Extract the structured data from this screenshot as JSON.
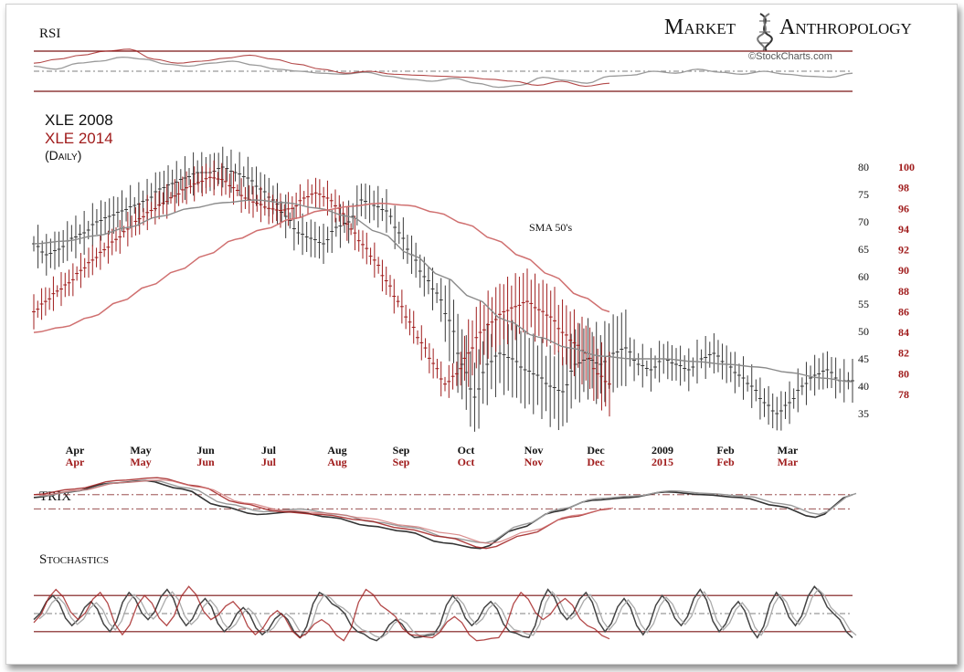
{
  "brand": {
    "name_part1": "Market",
    "name_part2": "Anthropology",
    "credit": "©StockCharts.com",
    "logo_icon": "dna-helix-icon"
  },
  "colors": {
    "series_2008": "#3a3a3a",
    "series_2014": "#a01c1c",
    "sma_2008": "#8a8a8a",
    "sma_2014": "#d07070",
    "band": "#7a1515",
    "bg": "#ffffff"
  },
  "chart_data": [
    {
      "type": "line",
      "panel": "rsi",
      "title": "RSI",
      "series": [
        {
          "name": "XLE 2008",
          "values": [
            55,
            52,
            58,
            60,
            64,
            62,
            57,
            55,
            58,
            60,
            56,
            52,
            50,
            48,
            47,
            49,
            45,
            42,
            40,
            43,
            38,
            34,
            36,
            44,
            41,
            38,
            45,
            46,
            50,
            48,
            52,
            49,
            47,
            50,
            47,
            45,
            44,
            48
          ]
        },
        {
          "name": "XLE 2014",
          "values": [
            58,
            62,
            66,
            70,
            72,
            62,
            58,
            60,
            63,
            66,
            62,
            57,
            52,
            48,
            50,
            47,
            46,
            45,
            44,
            42,
            40,
            36,
            40,
            35,
            38
          ]
        }
      ]
    },
    {
      "type": "line",
      "panel": "price",
      "title": "XLE 2008",
      "subtitle": "XLE 2014",
      "note": "(Daily)",
      "annotation": "SMA 50's",
      "yaxis_2008": {
        "ticks": [
          35,
          40,
          45,
          50,
          55,
          60,
          65,
          70,
          75,
          80
        ],
        "lim": [
          33,
          82
        ]
      },
      "yaxis_2014": {
        "ticks": [
          78,
          80,
          82,
          84,
          86,
          88,
          90,
          92,
          94,
          96,
          98,
          100
        ]
      },
      "x_months_2008": [
        "Apr",
        "May",
        "Jun",
        "Jul",
        "Aug",
        "Sep",
        "Oct",
        "Nov",
        "Dec",
        "2009",
        "Feb",
        "Mar"
      ],
      "x_months_2014": [
        "Apr",
        "May",
        "Jun",
        "Jul",
        "Aug",
        "Sep",
        "Oct",
        "Nov",
        "Dec",
        "2015",
        "Feb",
        "Mar"
      ],
      "series": [
        {
          "name": "XLE 2008",
          "values": [
            66,
            64,
            65,
            67,
            68,
            70,
            71,
            72,
            73,
            74,
            76,
            77,
            78,
            79,
            79,
            80,
            79,
            78,
            76,
            74,
            71,
            68,
            67,
            66,
            69,
            70,
            74,
            73,
            72,
            68,
            64,
            60,
            57,
            52,
            44,
            38,
            44,
            46,
            45,
            43,
            42,
            40,
            39,
            44,
            45,
            44,
            46,
            47,
            44,
            43,
            45,
            44,
            43,
            45,
            46,
            44,
            42,
            40,
            37,
            35,
            37,
            40,
            42,
            43,
            41,
            41
          ]
        },
        {
          "name": "XLE 2008 SMA 50",
          "values": [
            66,
            66.5,
            67.5,
            69,
            71,
            72.5,
            73.5,
            74,
            73.5,
            72.5,
            71,
            68,
            64,
            60,
            56,
            52,
            49,
            47,
            45.5,
            45,
            45,
            44.5,
            44,
            43.5,
            42.5,
            41.5,
            40.8
          ]
        },
        {
          "name": "XLE 2014",
          "values": [
            86,
            87,
            88,
            88.8,
            90,
            91,
            92,
            93,
            94,
            95,
            95.8,
            96.5,
            97.2,
            98,
            98.5,
            99,
            98.8,
            98,
            97,
            96.5,
            96,
            95.8,
            96,
            97,
            97.5,
            97,
            96,
            94,
            92.5,
            91,
            89,
            87,
            85,
            83,
            81,
            79,
            80,
            82,
            84,
            85,
            86,
            86.5,
            87,
            86.2,
            85.5,
            84,
            83,
            82,
            80,
            79
          ]
        },
        {
          "name": "XLE 2014 SMA 50",
          "values": [
            84,
            84.5,
            85.5,
            87,
            88.5,
            90,
            91.5,
            93,
            94,
            95,
            95.8,
            96.2,
            96.5,
            96.3,
            95.6,
            94.5,
            93,
            91.3,
            89.5,
            87.5,
            86
          ]
        }
      ]
    },
    {
      "type": "line",
      "panel": "trix",
      "title": "TRIX",
      "series": [
        {
          "name": "XLE 2008",
          "values": [
            0.05,
            0.15,
            0.3,
            0.35,
            0.2,
            -0.1,
            -0.25,
            -0.2,
            -0.3,
            -0.45,
            -0.55,
            -0.75,
            -0.85,
            -0.5,
            -0.2,
            0.0,
            0.05,
            0.15,
            0.1,
            0.05,
            -0.1,
            -0.3,
            0.1
          ]
        },
        {
          "name": "XLE 2014",
          "values": [
            0.1,
            0.2,
            0.35,
            0.4,
            0.25,
            -0.05,
            -0.2,
            -0.25,
            -0.35,
            -0.5,
            -0.65,
            -0.85,
            -0.6,
            -0.3,
            -0.15
          ]
        }
      ]
    },
    {
      "type": "line",
      "panel": "stochastics",
      "title": "Stochastics",
      "series": [
        {
          "name": "XLE 2008",
          "values": [
            40,
            80,
            30,
            70,
            20,
            85,
            40,
            90,
            30,
            75,
            20,
            60,
            15,
            50,
            10,
            85,
            60,
            20,
            5,
            40,
            10,
            15,
            80,
            30,
            70,
            20,
            10,
            90,
            40,
            85,
            20,
            75,
            15,
            80,
            30,
            90,
            20,
            70,
            10,
            85,
            30,
            95,
            50,
            10
          ]
        },
        {
          "name": "XLE 2014",
          "values": [
            35,
            90,
            40,
            85,
            15,
            80,
            30,
            95,
            40,
            70,
            15,
            55,
            10,
            40,
            5,
            90,
            55,
            15,
            10,
            45,
            5,
            10,
            85,
            40,
            75,
            30,
            8
          ]
        }
      ]
    }
  ]
}
